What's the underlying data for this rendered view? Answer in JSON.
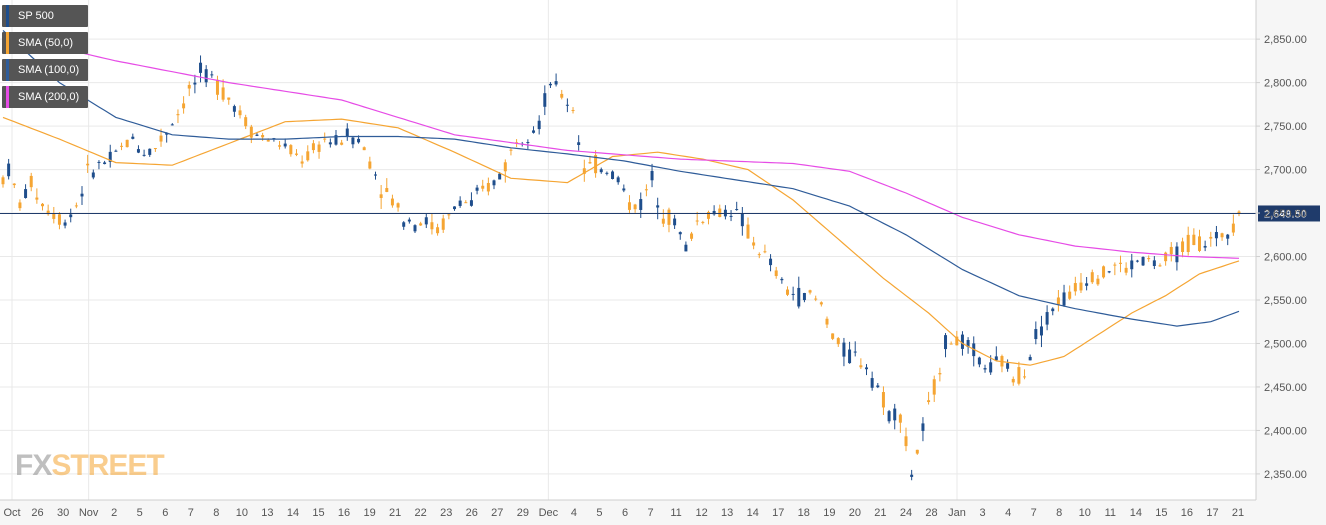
{
  "colors": {
    "background": "#f6f6f6",
    "plot_bg": "#ffffff",
    "grid": "#e9e9e9",
    "up": "#1f4e8c",
    "down": "#f5a533",
    "sma50": "#f5a533",
    "sma100": "#2f5c99",
    "sma200": "#e64ce6",
    "price_line": "#1f3b6b",
    "price_tag_bg": "#1f3b6b",
    "price_tag_text": "#ffffff",
    "axis_text": "#555555"
  },
  "legend": [
    {
      "label": "SP 500",
      "color": "#1f4e8c"
    },
    {
      "label": "SMA (50,0)",
      "color": "#f5a533"
    },
    {
      "label": "SMA (100,0)",
      "color": "#2f5c99"
    },
    {
      "label": "SMA (200,0)",
      "color": "#e64ce6"
    }
  ],
  "watermark": {
    "part1": "FX",
    "part2": "STREET"
  },
  "current_price_label": "2,649.50",
  "chart_data": {
    "type": "candlestick",
    "title": "",
    "ylim": [
      2320,
      2895
    ],
    "y_ticks": [
      2350,
      2400,
      2450,
      2500,
      2550,
      2600,
      2650,
      2700,
      2750,
      2800,
      2850
    ],
    "y_tick_labels": [
      "2,350.00",
      "2,400.00",
      "2,450.00",
      "2,500.00",
      "2,550.00",
      "2,600.00",
      "2,650.00",
      "2,700.00",
      "2,750.00",
      "2,800.00",
      "2,850.00"
    ],
    "x_labels": [
      "Oct",
      "26",
      "30",
      "Nov",
      "2",
      "5",
      "6",
      "7",
      "8",
      "10",
      "13",
      "14",
      "15",
      "16",
      "19",
      "21",
      "22",
      "23",
      "26",
      "27",
      "29",
      "Dec",
      "4",
      "5",
      "6",
      "7",
      "11",
      "12",
      "13",
      "14",
      "17",
      "18",
      "19",
      "20",
      "21",
      "24",
      "28",
      "Jan",
      "3",
      "4",
      "7",
      "8",
      "10",
      "11",
      "14",
      "15",
      "16",
      "17",
      "21"
    ],
    "current_price": 2649.5,
    "series": [
      {
        "name": "SP 500",
        "type": "candlestick",
        "anchors": [
          [
            0,
            2690
          ],
          [
            1,
            2700
          ],
          [
            3,
            2660
          ],
          [
            5,
            2685
          ],
          [
            7,
            2660
          ],
          [
            9,
            2650
          ],
          [
            11,
            2640
          ],
          [
            13,
            2660
          ],
          [
            15,
            2695
          ],
          [
            17,
            2705
          ],
          [
            19,
            2710
          ],
          [
            21,
            2725
          ],
          [
            23,
            2735
          ],
          [
            25,
            2720
          ],
          [
            27,
            2725
          ],
          [
            29,
            2745
          ],
          [
            31,
            2765
          ],
          [
            33,
            2790
          ],
          [
            35,
            2810
          ],
          [
            37,
            2805
          ],
          [
            39,
            2790
          ],
          [
            41,
            2775
          ],
          [
            43,
            2755
          ],
          [
            45,
            2740
          ],
          [
            47,
            2735
          ],
          [
            49,
            2730
          ],
          [
            51,
            2720
          ],
          [
            53,
            2712
          ],
          [
            55,
            2720
          ],
          [
            57,
            2735
          ],
          [
            59,
            2730
          ],
          [
            61,
            2740
          ],
          [
            63,
            2735
          ],
          [
            65,
            2710
          ],
          [
            67,
            2680
          ],
          [
            69,
            2665
          ],
          [
            71,
            2645
          ],
          [
            73,
            2640
          ],
          [
            75,
            2640
          ],
          [
            77,
            2630
          ],
          [
            79,
            2645
          ],
          [
            81,
            2665
          ],
          [
            83,
            2660
          ],
          [
            85,
            2675
          ],
          [
            87,
            2685
          ],
          [
            89,
            2705
          ],
          [
            91,
            2735
          ],
          [
            93,
            2745
          ],
          [
            95,
            2755
          ],
          [
            97,
            2800
          ],
          [
            99,
            2785
          ],
          [
            101,
            2770
          ],
          [
            103,
            2700
          ],
          [
            105,
            2705
          ],
          [
            107,
            2700
          ],
          [
            109,
            2690
          ],
          [
            111,
            2660
          ],
          [
            113,
            2660
          ],
          [
            115,
            2690
          ],
          [
            117,
            2650
          ],
          [
            119,
            2640
          ],
          [
            121,
            2610
          ],
          [
            123,
            2640
          ],
          [
            125,
            2650
          ],
          [
            127,
            2650
          ],
          [
            129,
            2655
          ],
          [
            131,
            2640
          ],
          [
            133,
            2615
          ],
          [
            135,
            2600
          ],
          [
            137,
            2580
          ],
          [
            139,
            2560
          ],
          [
            141,
            2555
          ],
          [
            143,
            2555
          ],
          [
            145,
            2545
          ],
          [
            147,
            2510
          ],
          [
            149,
            2490
          ],
          [
            151,
            2485
          ],
          [
            153,
            2475
          ],
          [
            155,
            2450
          ],
          [
            157,
            2420
          ],
          [
            159,
            2420
          ],
          [
            161,
            2350
          ],
          [
            163,
            2400
          ],
          [
            165,
            2450
          ],
          [
            167,
            2500
          ],
          [
            169,
            2505
          ],
          [
            171,
            2495
          ],
          [
            173,
            2480
          ],
          [
            175,
            2470
          ],
          [
            177,
            2480
          ],
          [
            179,
            2460
          ],
          [
            181,
            2470
          ],
          [
            183,
            2510
          ],
          [
            185,
            2530
          ],
          [
            187,
            2550
          ],
          [
            189,
            2555
          ],
          [
            191,
            2570
          ],
          [
            193,
            2580
          ],
          [
            195,
            2580
          ],
          [
            197,
            2590
          ],
          [
            199,
            2585
          ],
          [
            201,
            2595
          ],
          [
            203,
            2595
          ],
          [
            205,
            2590
          ],
          [
            207,
            2600
          ],
          [
            209,
            2610
          ],
          [
            211,
            2620
          ],
          [
            213,
            2615
          ],
          [
            215,
            2620
          ],
          [
            217,
            2630
          ],
          [
            219,
            2649.5
          ]
        ]
      },
      {
        "name": "SMA (50,0)",
        "type": "line",
        "anchors": [
          [
            0,
            2760
          ],
          [
            10,
            2735
          ],
          [
            20,
            2708
          ],
          [
            30,
            2705
          ],
          [
            40,
            2730
          ],
          [
            50,
            2755
          ],
          [
            60,
            2758
          ],
          [
            70,
            2748
          ],
          [
            80,
            2720
          ],
          [
            90,
            2690
          ],
          [
            100,
            2685
          ],
          [
            108,
            2715
          ],
          [
            116,
            2720
          ],
          [
            124,
            2712
          ],
          [
            132,
            2700
          ],
          [
            140,
            2665
          ],
          [
            148,
            2620
          ],
          [
            156,
            2575
          ],
          [
            164,
            2535
          ],
          [
            170,
            2500
          ],
          [
            176,
            2480
          ],
          [
            182,
            2475
          ],
          [
            188,
            2485
          ],
          [
            194,
            2510
          ],
          [
            200,
            2535
          ],
          [
            206,
            2555
          ],
          [
            212,
            2580
          ],
          [
            219,
            2595
          ]
        ]
      },
      {
        "name": "SMA (100,0)",
        "type": "line",
        "anchors": [
          [
            0,
            2860
          ],
          [
            10,
            2800
          ],
          [
            20,
            2760
          ],
          [
            30,
            2740
          ],
          [
            40,
            2735
          ],
          [
            50,
            2735
          ],
          [
            60,
            2738
          ],
          [
            70,
            2738
          ],
          [
            80,
            2735
          ],
          [
            90,
            2725
          ],
          [
            100,
            2718
          ],
          [
            110,
            2710
          ],
          [
            120,
            2698
          ],
          [
            130,
            2688
          ],
          [
            140,
            2678
          ],
          [
            150,
            2658
          ],
          [
            160,
            2625
          ],
          [
            170,
            2585
          ],
          [
            180,
            2555
          ],
          [
            190,
            2540
          ],
          [
            200,
            2528
          ],
          [
            208,
            2520
          ],
          [
            214,
            2525
          ],
          [
            219,
            2537
          ]
        ]
      },
      {
        "name": "SMA (200,0)",
        "type": "line",
        "anchors": [
          [
            0,
            2855
          ],
          [
            20,
            2825
          ],
          [
            40,
            2800
          ],
          [
            60,
            2780
          ],
          [
            80,
            2740
          ],
          [
            100,
            2722
          ],
          [
            120,
            2712
          ],
          [
            140,
            2707
          ],
          [
            150,
            2698
          ],
          [
            160,
            2673
          ],
          [
            170,
            2645
          ],
          [
            180,
            2625
          ],
          [
            190,
            2612
          ],
          [
            200,
            2605
          ],
          [
            210,
            2600
          ],
          [
            219,
            2598
          ]
        ]
      }
    ]
  }
}
